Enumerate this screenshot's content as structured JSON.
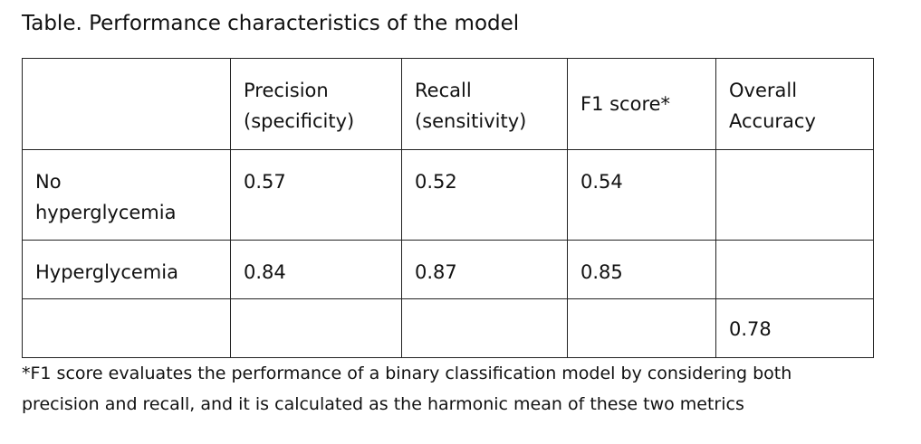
{
  "caption": "Table. Performance characteristics of the model",
  "table": {
    "headers": {
      "blank": "",
      "precision_1": "Precision",
      "precision_2": "(specificity)",
      "recall_1": "Recall",
      "recall_2": "(sensitivity)",
      "f1": "F1 score*",
      "overall_1": "Overall",
      "overall_2": "Accuracy"
    },
    "rows": [
      {
        "label_1": "No",
        "label_2": "hyperglycemia",
        "precision": "0.57",
        "recall": "0.52",
        "f1": "0.54",
        "overall": ""
      },
      {
        "label_1": "Hyperglycemia",
        "label_2": "",
        "precision": "0.84",
        "recall": "0.87",
        "f1": "0.85",
        "overall": ""
      },
      {
        "label_1": "",
        "label_2": "",
        "precision": "",
        "recall": "",
        "f1": "",
        "overall": "0.78"
      }
    ]
  },
  "footnote": {
    "line_1": "*F1 score evaluates the performance of a binary classification model by considering both",
    "line_2": "precision and recall, and it is calculated as the harmonic mean of these two metrics"
  }
}
